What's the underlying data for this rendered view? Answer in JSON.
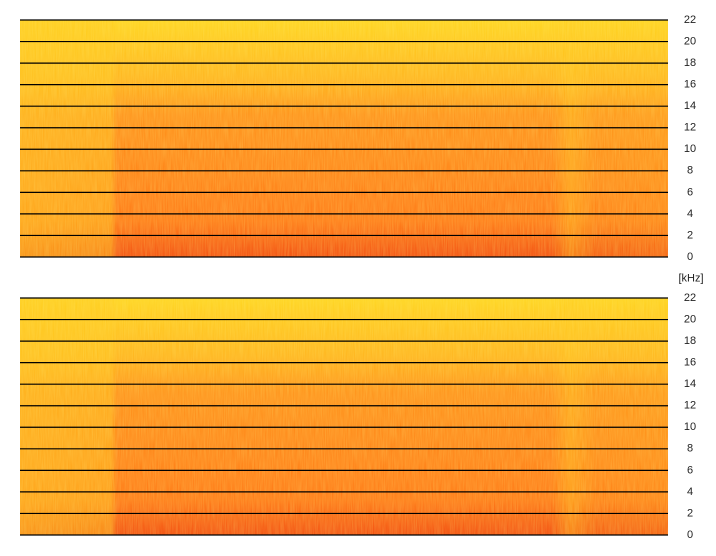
{
  "chart_data": [
    {
      "type": "spectrogram",
      "ylim": [
        0,
        22
      ],
      "yticks": [
        0,
        2,
        4,
        6,
        8,
        10,
        12,
        14,
        16,
        18,
        20,
        22
      ],
      "y_unit": "[kHz]",
      "grid": true
    },
    {
      "type": "spectrogram",
      "ylim": [
        0,
        22
      ],
      "yticks": [
        0,
        2,
        4,
        6,
        8,
        10,
        12,
        14,
        16,
        18,
        20,
        22
      ],
      "grid": true
    }
  ]
}
